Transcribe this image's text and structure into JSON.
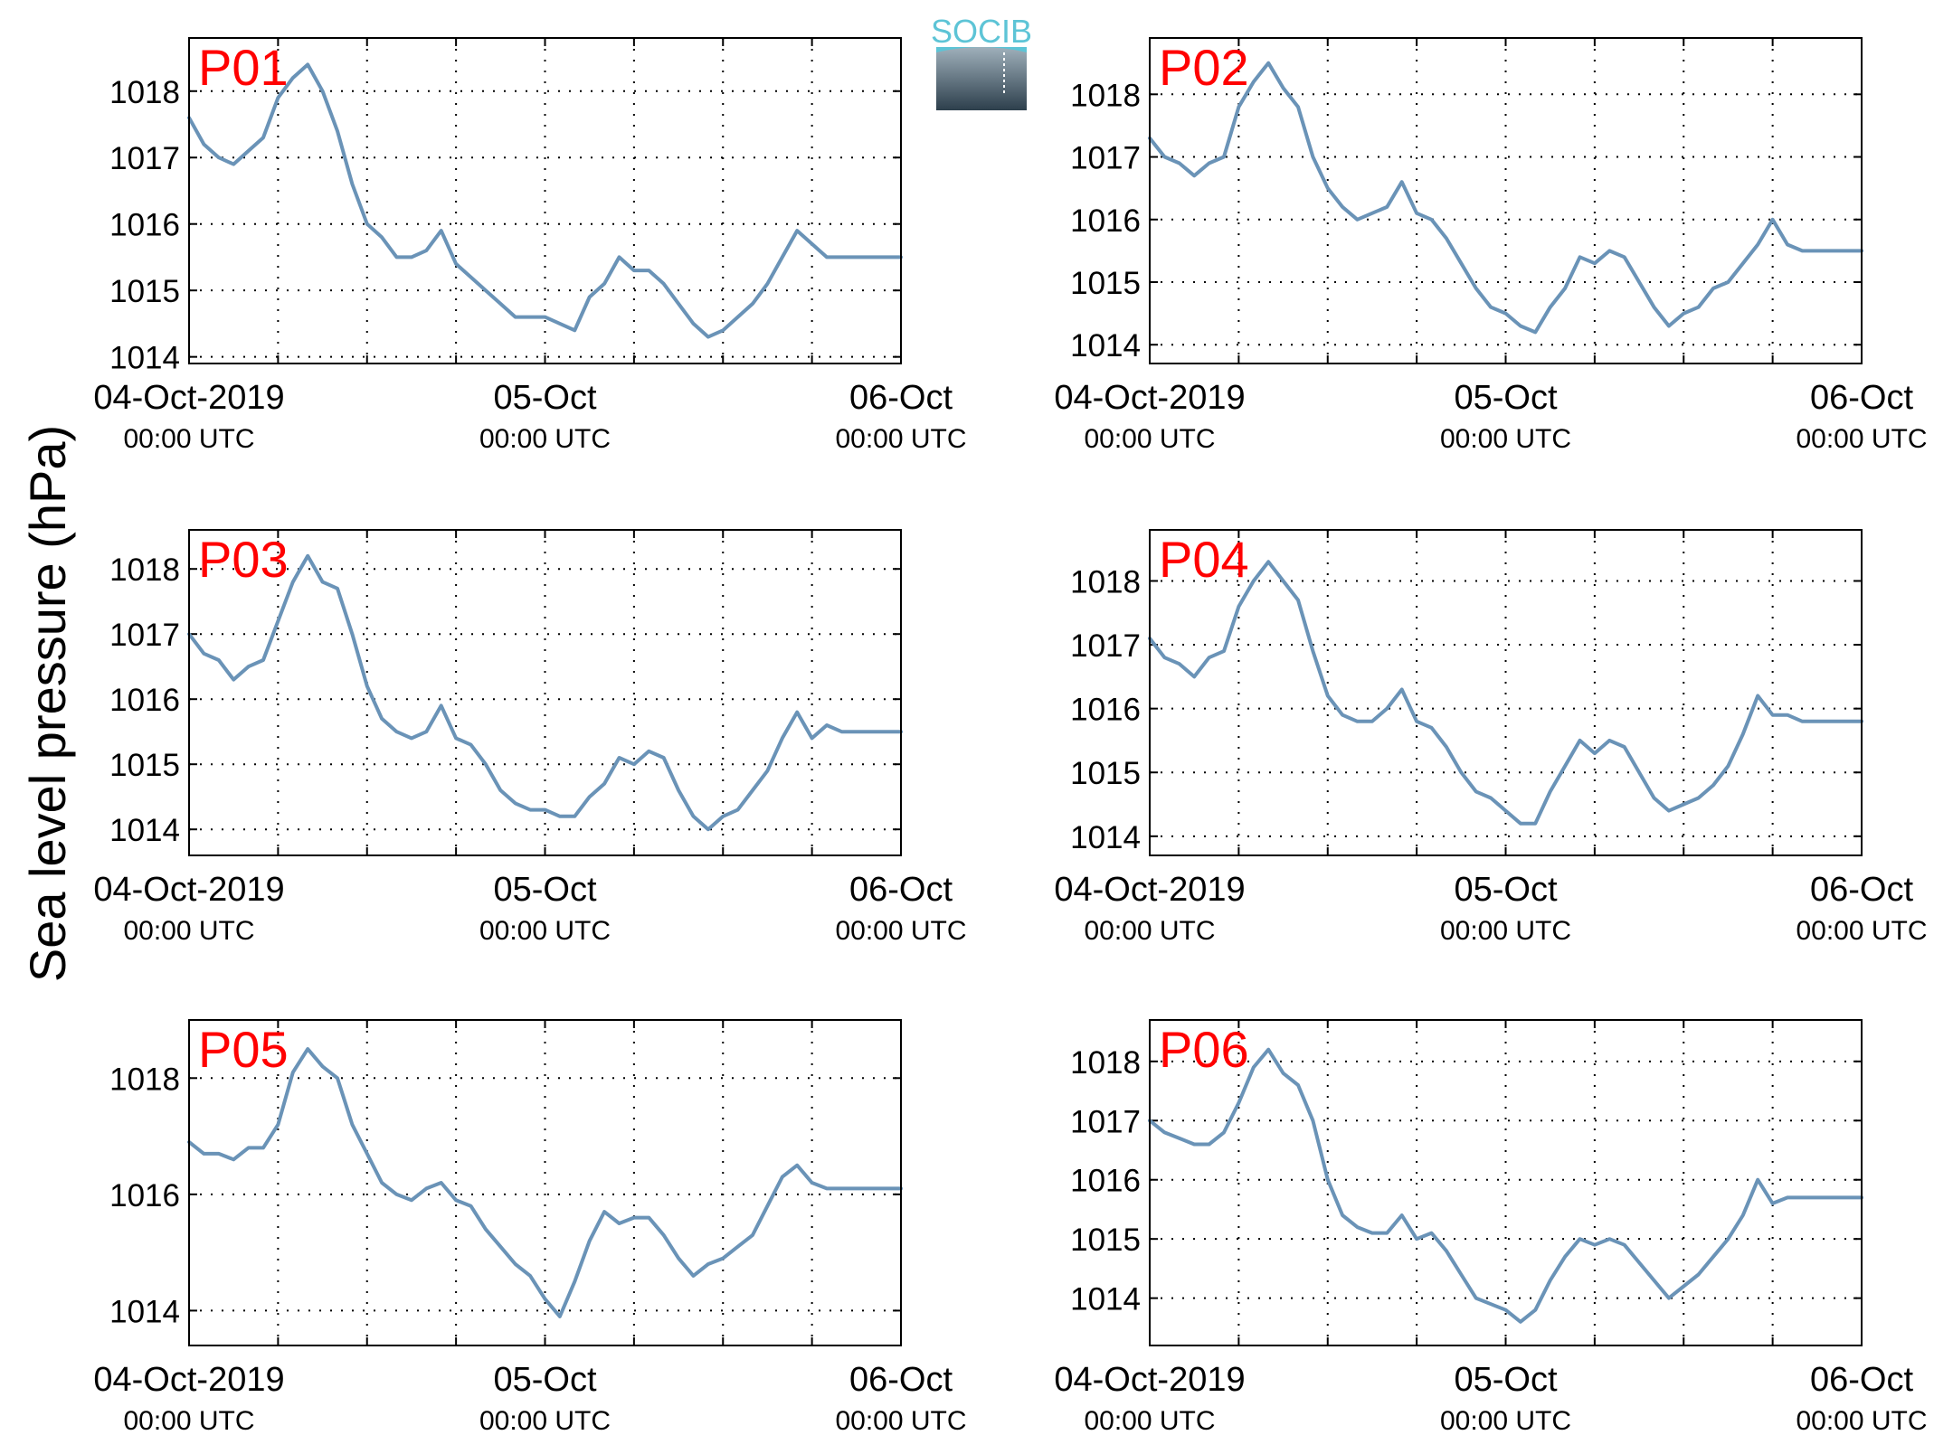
{
  "figure": {
    "ylabel": "Sea level pressure (hPa)",
    "logo_text": "SOCIB"
  },
  "colors": {
    "line": "#6a93b7",
    "label": "#ff0000",
    "grid": "#000000",
    "logo_top": "#5dc4d6",
    "logo_bottom": "#2d3f4c"
  },
  "x_ticks": [
    {
      "x": 0,
      "date": "04-Oct-2019",
      "time": "00:00 UTC"
    },
    {
      "x": 24,
      "date": "05-Oct",
      "time": "00:00 UTC"
    },
    {
      "x": 48,
      "date": "06-Oct",
      "time": "00:00 UTC"
    }
  ],
  "chart_data": [
    {
      "type": "line",
      "title": "P01",
      "xlim": [
        0,
        48
      ],
      "ylim": [
        1013.9,
        1018.8
      ],
      "yticks": [
        1014,
        1015,
        1016,
        1017,
        1018
      ],
      "x": [
        0,
        1,
        2,
        3,
        4,
        5,
        6,
        7,
        8,
        9,
        10,
        11,
        12,
        13,
        14,
        15,
        16,
        17,
        18,
        19,
        20,
        21,
        22,
        23,
        24,
        25,
        26,
        27,
        28,
        29,
        30,
        31,
        32,
        33,
        34,
        35,
        36,
        37,
        38,
        39,
        40,
        41,
        42,
        43,
        44,
        45,
        46,
        47,
        48
      ],
      "y": [
        1017.6,
        1017.2,
        1017.0,
        1016.9,
        1017.1,
        1017.3,
        1017.9,
        1018.2,
        1018.4,
        1018.0,
        1017.4,
        1016.6,
        1016.0,
        1015.8,
        1015.5,
        1015.5,
        1015.6,
        1015.9,
        1015.4,
        1015.2,
        1015.0,
        1014.8,
        1014.6,
        1014.6,
        1014.6,
        1014.5,
        1014.4,
        1014.9,
        1015.1,
        1015.5,
        1015.3,
        1015.3,
        1015.1,
        1014.8,
        1014.5,
        1014.3,
        1014.4,
        1014.6,
        1014.8,
        1015.1,
        1015.5,
        1015.9,
        1015.7,
        1015.5,
        1015.5,
        1015.5,
        1015.5,
        1015.5,
        1015.5
      ]
    },
    {
      "type": "line",
      "title": "P02",
      "xlim": [
        0,
        48
      ],
      "ylim": [
        1013.7,
        1018.9
      ],
      "yticks": [
        1014,
        1015,
        1016,
        1017,
        1018
      ],
      "x": [
        0,
        1,
        2,
        3,
        4,
        5,
        6,
        7,
        8,
        9,
        10,
        11,
        12,
        13,
        14,
        15,
        16,
        17,
        18,
        19,
        20,
        21,
        22,
        23,
        24,
        25,
        26,
        27,
        28,
        29,
        30,
        31,
        32,
        33,
        34,
        35,
        36,
        37,
        38,
        39,
        40,
        41,
        42,
        43,
        44,
        45,
        46,
        47,
        48
      ],
      "y": [
        1017.3,
        1017.0,
        1016.9,
        1016.7,
        1016.9,
        1017.0,
        1017.8,
        1018.2,
        1018.5,
        1018.1,
        1017.8,
        1017.0,
        1016.5,
        1016.2,
        1016.0,
        1016.1,
        1016.2,
        1016.6,
        1016.1,
        1016.0,
        1015.7,
        1015.3,
        1014.9,
        1014.6,
        1014.5,
        1014.3,
        1014.2,
        1014.6,
        1014.9,
        1015.4,
        1015.3,
        1015.5,
        1015.4,
        1015.0,
        1014.6,
        1014.3,
        1014.5,
        1014.6,
        1014.9,
        1015.0,
        1015.3,
        1015.6,
        1016.0,
        1015.6,
        1015.5,
        1015.5,
        1015.5,
        1015.5,
        1015.5
      ]
    },
    {
      "type": "line",
      "title": "P03",
      "xlim": [
        0,
        48
      ],
      "ylim": [
        1013.6,
        1018.6
      ],
      "yticks": [
        1014,
        1015,
        1016,
        1017,
        1018
      ],
      "x": [
        0,
        1,
        2,
        3,
        4,
        5,
        6,
        7,
        8,
        9,
        10,
        11,
        12,
        13,
        14,
        15,
        16,
        17,
        18,
        19,
        20,
        21,
        22,
        23,
        24,
        25,
        26,
        27,
        28,
        29,
        30,
        31,
        32,
        33,
        34,
        35,
        36,
        37,
        38,
        39,
        40,
        41,
        42,
        43,
        44,
        45,
        46,
        47,
        48
      ],
      "y": [
        1017.0,
        1016.7,
        1016.6,
        1016.3,
        1016.5,
        1016.6,
        1017.2,
        1017.8,
        1018.2,
        1017.8,
        1017.7,
        1017.0,
        1016.2,
        1015.7,
        1015.5,
        1015.4,
        1015.5,
        1015.9,
        1015.4,
        1015.3,
        1015.0,
        1014.6,
        1014.4,
        1014.3,
        1014.3,
        1014.2,
        1014.2,
        1014.5,
        1014.7,
        1015.1,
        1015.0,
        1015.2,
        1015.1,
        1014.6,
        1014.2,
        1014.0,
        1014.2,
        1014.3,
        1014.6,
        1014.9,
        1015.4,
        1015.8,
        1015.4,
        1015.6,
        1015.5,
        1015.5,
        1015.5,
        1015.5,
        1015.5
      ]
    },
    {
      "type": "line",
      "title": "P04",
      "xlim": [
        0,
        48
      ],
      "ylim": [
        1013.7,
        1018.8
      ],
      "yticks": [
        1014,
        1015,
        1016,
        1017,
        1018
      ],
      "x": [
        0,
        1,
        2,
        3,
        4,
        5,
        6,
        7,
        8,
        9,
        10,
        11,
        12,
        13,
        14,
        15,
        16,
        17,
        18,
        19,
        20,
        21,
        22,
        23,
        24,
        25,
        26,
        27,
        28,
        29,
        30,
        31,
        32,
        33,
        34,
        35,
        36,
        37,
        38,
        39,
        40,
        41,
        42,
        43,
        44,
        45,
        46,
        47,
        48
      ],
      "y": [
        1017.1,
        1016.8,
        1016.7,
        1016.5,
        1016.8,
        1016.9,
        1017.6,
        1018.0,
        1018.3,
        1018.0,
        1017.7,
        1016.9,
        1016.2,
        1015.9,
        1015.8,
        1015.8,
        1016.0,
        1016.3,
        1015.8,
        1015.7,
        1015.4,
        1015.0,
        1014.7,
        1014.6,
        1014.4,
        1014.2,
        1014.2,
        1014.7,
        1015.1,
        1015.5,
        1015.3,
        1015.5,
        1015.4,
        1015.0,
        1014.6,
        1014.4,
        1014.5,
        1014.6,
        1014.8,
        1015.1,
        1015.6,
        1016.2,
        1015.9,
        1015.9,
        1015.8,
        1015.8,
        1015.8,
        1015.8,
        1015.8
      ]
    },
    {
      "type": "line",
      "title": "P05",
      "xlim": [
        0,
        48
      ],
      "ylim": [
        1013.4,
        1019.0
      ],
      "yticks": [
        1014,
        1016,
        1018
      ],
      "x": [
        0,
        1,
        2,
        3,
        4,
        5,
        6,
        7,
        8,
        9,
        10,
        11,
        12,
        13,
        14,
        15,
        16,
        17,
        18,
        19,
        20,
        21,
        22,
        23,
        24,
        25,
        26,
        27,
        28,
        29,
        30,
        31,
        32,
        33,
        34,
        35,
        36,
        37,
        38,
        39,
        40,
        41,
        42,
        43,
        44,
        45,
        46,
        47,
        48
      ],
      "y": [
        1016.9,
        1016.7,
        1016.7,
        1016.6,
        1016.8,
        1016.8,
        1017.2,
        1018.1,
        1018.5,
        1018.2,
        1018.0,
        1017.2,
        1016.7,
        1016.2,
        1016.0,
        1015.9,
        1016.1,
        1016.2,
        1015.9,
        1015.8,
        1015.4,
        1015.1,
        1014.8,
        1014.6,
        1014.2,
        1013.9,
        1014.5,
        1015.2,
        1015.7,
        1015.5,
        1015.6,
        1015.6,
        1015.3,
        1014.9,
        1014.6,
        1014.8,
        1014.9,
        1015.1,
        1015.3,
        1015.8,
        1016.3,
        1016.5,
        1016.2,
        1016.1,
        1016.1,
        1016.1,
        1016.1,
        1016.1,
        1016.1
      ]
    },
    {
      "type": "line",
      "title": "P06",
      "xlim": [
        0,
        48
      ],
      "ylim": [
        1013.2,
        1018.7
      ],
      "yticks": [
        1014,
        1015,
        1016,
        1017,
        1018
      ],
      "x": [
        0,
        1,
        2,
        3,
        4,
        5,
        6,
        7,
        8,
        9,
        10,
        11,
        12,
        13,
        14,
        15,
        16,
        17,
        18,
        19,
        20,
        21,
        22,
        23,
        24,
        25,
        26,
        27,
        28,
        29,
        30,
        31,
        32,
        33,
        34,
        35,
        36,
        37,
        38,
        39,
        40,
        41,
        42,
        43,
        44,
        45,
        46,
        47,
        48
      ],
      "y": [
        1017.0,
        1016.8,
        1016.7,
        1016.6,
        1016.6,
        1016.8,
        1017.3,
        1017.9,
        1018.2,
        1017.8,
        1017.6,
        1017.0,
        1016.0,
        1015.4,
        1015.2,
        1015.1,
        1015.1,
        1015.4,
        1015.0,
        1015.1,
        1014.8,
        1014.4,
        1014.0,
        1013.9,
        1013.8,
        1013.6,
        1013.8,
        1014.3,
        1014.7,
        1015.0,
        1014.9,
        1015.0,
        1014.9,
        1014.6,
        1014.3,
        1014.0,
        1014.2,
        1014.4,
        1014.7,
        1015.0,
        1015.4,
        1016.0,
        1015.6,
        1015.7,
        1015.7,
        1015.7,
        1015.7,
        1015.7,
        1015.7
      ]
    }
  ]
}
